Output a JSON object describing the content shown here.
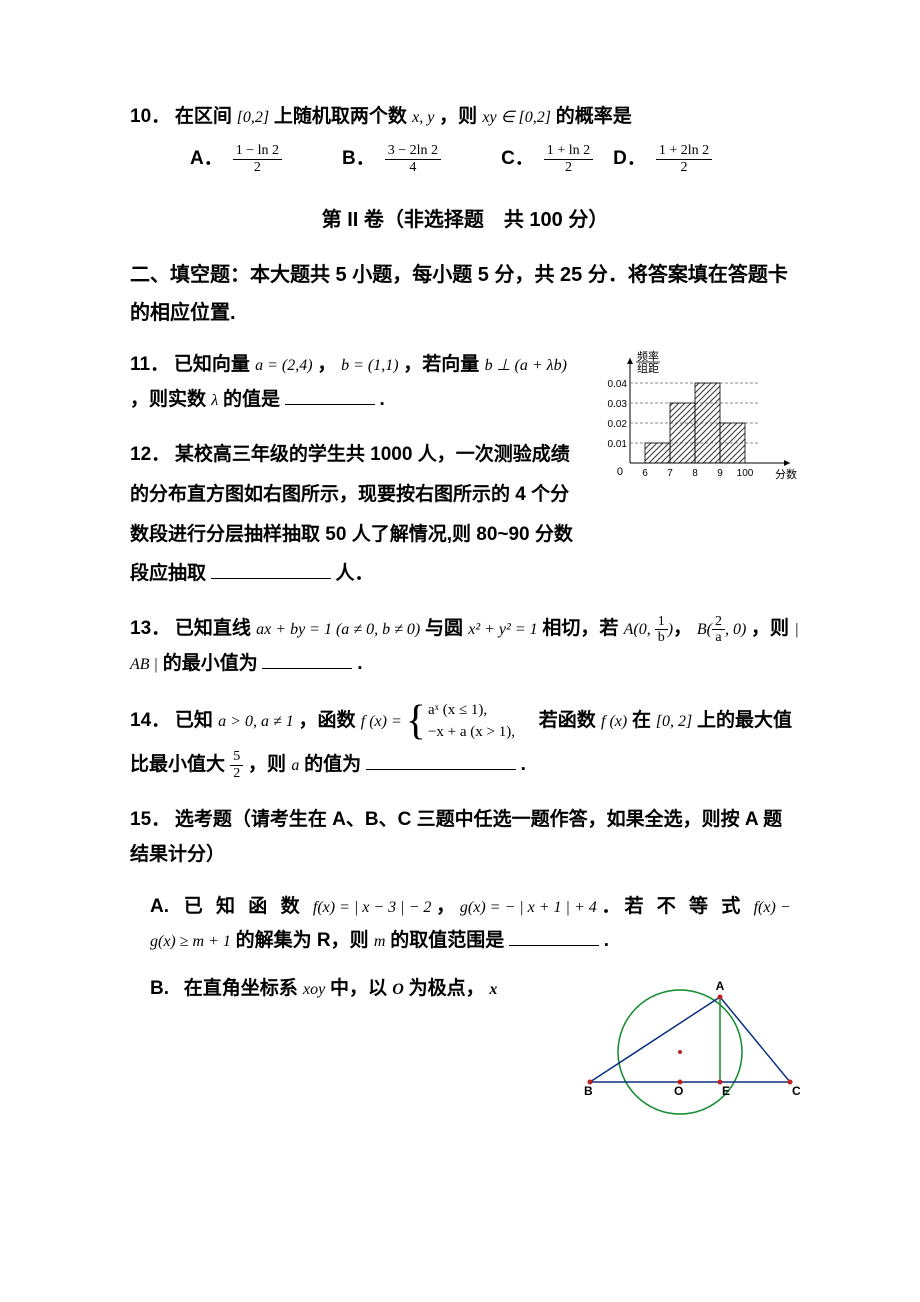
{
  "q10": {
    "prefix": "10．",
    "text_parts": [
      "在区间",
      "[0,2]",
      " 上随机取两个数 ",
      "x, y",
      "，则 ",
      "xy ∈ [0,2]",
      "的概率是"
    ],
    "options": {
      "A": {
        "num": "1 − ln 2",
        "den": "2"
      },
      "B": {
        "num": "3 − 2ln 2",
        "den": "4"
      },
      "C": {
        "num": "1 + ln 2",
        "den": "2"
      },
      "D": {
        "num": "1 + 2ln 2",
        "den": "2"
      }
    }
  },
  "section_title": "第 II 卷（非选择题　共 100 分）",
  "section_heading": "二、填空题：本大题共 5 小题，每小题 5 分，共 25 分．将答案填在答题卡的相应位置.",
  "q11": {
    "prefix": "11．",
    "parts": [
      "已知向量 ",
      "a = (2,4)",
      "，",
      "b = (1,1)",
      "，若向量 ",
      "b ⊥ (a + λb)",
      "，则实数 ",
      "λ",
      " 的值是",
      "."
    ]
  },
  "q12": {
    "prefix": "12．",
    "text": "某校高三年级的学生共 1000 人，一次测验成绩的分布直方图如右图所示，现要按右图所示的 4 个分数段进行分层抽样抽取 50 人了解情况,则 80~90 分数段应抽取",
    "suffix": "人．"
  },
  "histogram": {
    "y_label": "频率",
    "y_label2": "组距",
    "y_ticks": [
      "0.01",
      "0.02",
      "0.03",
      "0.04"
    ],
    "x_ticks": [
      "6",
      "7",
      "8",
      "9",
      "100"
    ],
    "x_label": "分数",
    "bars": [
      0.01,
      0.03,
      0.04,
      0.02
    ],
    "axis_color": "#000000",
    "dash_color": "#666666",
    "hatch_color": "#333333",
    "origin_label": "0"
  },
  "q13": {
    "prefix": "13．",
    "parts": [
      "已知直线 ",
      "ax + by = 1 (a ≠ 0, b ≠ 0)",
      " 与圆 ",
      "x² + y² = 1",
      " 相切，若 "
    ],
    "A_part": "A(0, ",
    "A_frac": {
      "num": "1",
      "den": "b"
    },
    "A_close": ")",
    "B_part": "B(",
    "B_frac": {
      "num": "2",
      "den": "a"
    },
    "B_close": ", 0)",
    "mid": "，则 ",
    "ab": "| AB |",
    "tail": " 的最小值为",
    "period": "."
  },
  "q14": {
    "prefix": "14．",
    "parts": [
      "已知 ",
      "a > 0, a ≠ 1",
      "，函数 ",
      "f (x) = "
    ],
    "piece1": "aˣ  (x ≤ 1),",
    "piece2": "−x + a  (x > 1),",
    "mid": "　若函数 ",
    "fx": "f (x)",
    "tail1": " 在",
    "range": "[0, 2]",
    "tail2": "上的最大值比最小值大 ",
    "frac52": {
      "num": "5",
      "den": "2"
    },
    "tail3": "，则 ",
    "a": "a",
    "tail4": " 的值为",
    "period": "."
  },
  "q15": {
    "prefix": "15．",
    "intro": "选考题（请考生在 A、B、C 三题中任选一题作答，如果全选，则按 A 题结果计分）"
  },
  "q15A": {
    "prefix": "A.",
    "parts": [
      "已 知 函 数 ",
      "f(x) = | x − 3 | − 2",
      "，",
      "g(x) = − | x + 1 | + 4",
      "．若 不 等 式 ",
      "f(x) − g(x) ≥ m + 1",
      "的解集为 R，则 ",
      "m",
      " 的取值范围是",
      "."
    ]
  },
  "q15B": {
    "prefix": "B.",
    "parts": [
      "在直角坐标系 ",
      "xoy",
      " 中，以 ",
      "O",
      " 为极点，",
      "x"
    ]
  },
  "circle": {
    "A": "A",
    "B": "B",
    "C": "C",
    "E": "E",
    "O": "O",
    "stroke_dark": "#0a3080",
    "stroke_green": "#128a2e",
    "dot": "#c02020"
  }
}
